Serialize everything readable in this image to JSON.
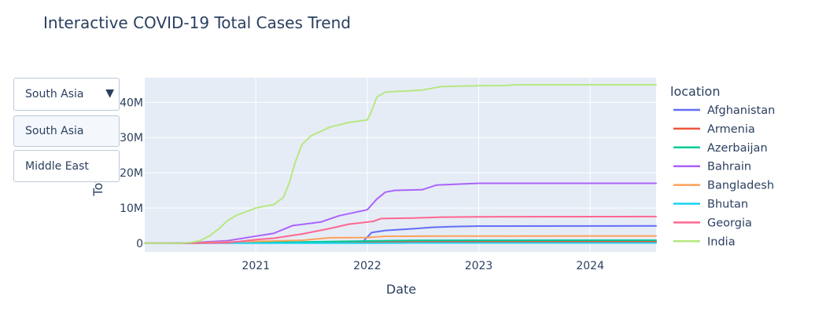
{
  "chart_data": {
    "type": "line",
    "title": "Interactive COVID-19 Total Cases Trend",
    "xlabel": "Date",
    "ylabel": "Tot",
    "legend_title": "location",
    "xlim": [
      "2020-01-03",
      "2024-08-04"
    ],
    "ylim": [
      -2500000,
      47000000
    ],
    "x_ticks": [
      "2021-01-01",
      "2022-01-01",
      "2023-01-01",
      "2024-01-01"
    ],
    "x_tick_labels": [
      "2021",
      "2022",
      "2023",
      "2024"
    ],
    "y_ticks": [
      0,
      10000000,
      20000000,
      30000000,
      40000000
    ],
    "y_tick_labels": [
      "0",
      "10M",
      "20M",
      "30M",
      "40M"
    ],
    "grid": true,
    "series": [
      {
        "name": "Afghanistan",
        "color": "#636efa",
        "points": [
          [
            "2020-01-03",
            0
          ],
          [
            "2020-06-01",
            30000
          ],
          [
            "2021-01-01",
            55000
          ],
          [
            "2021-06-01",
            90000
          ],
          [
            "2021-12-15",
            160000
          ],
          [
            "2022-01-15",
            3000000
          ],
          [
            "2022-03-01",
            3600000
          ],
          [
            "2022-06-01",
            4100000
          ],
          [
            "2022-08-01",
            4500000
          ],
          [
            "2022-10-01",
            4700000
          ],
          [
            "2023-01-01",
            4850000
          ],
          [
            "2024-08-04",
            4900000
          ]
        ]
      },
      {
        "name": "Armenia",
        "color": "#EF553B",
        "points": [
          [
            "2020-01-03",
            0
          ],
          [
            "2020-06-01",
            20000
          ],
          [
            "2021-01-01",
            160000
          ],
          [
            "2021-06-01",
            225000
          ],
          [
            "2022-01-01",
            345000
          ],
          [
            "2022-06-01",
            425000
          ],
          [
            "2023-01-01",
            447000
          ],
          [
            "2024-08-04",
            452000
          ]
        ]
      },
      {
        "name": "Azerbaijan",
        "color": "#00cc96",
        "points": [
          [
            "2020-01-03",
            0
          ],
          [
            "2020-06-01",
            7000
          ],
          [
            "2021-01-01",
            220000
          ],
          [
            "2021-06-01",
            335000
          ],
          [
            "2022-01-01",
            620000
          ],
          [
            "2022-06-01",
            792000
          ],
          [
            "2023-01-01",
            826000
          ],
          [
            "2024-08-04",
            835000
          ]
        ]
      },
      {
        "name": "Bahrain",
        "color": "#ab63fa",
        "points": [
          [
            "2020-01-03",
            0
          ],
          [
            "2020-06-01",
            100000
          ],
          [
            "2020-10-01",
            700000
          ],
          [
            "2021-01-01",
            2000000
          ],
          [
            "2021-03-01",
            2800000
          ],
          [
            "2021-05-01",
            5000000
          ],
          [
            "2021-08-01",
            6000000
          ],
          [
            "2021-10-01",
            7800000
          ],
          [
            "2022-01-01",
            9500000
          ],
          [
            "2022-02-01",
            12500000
          ],
          [
            "2022-03-01",
            14500000
          ],
          [
            "2022-04-01",
            15000000
          ],
          [
            "2022-07-01",
            15200000
          ],
          [
            "2022-08-15",
            16500000
          ],
          [
            "2023-01-01",
            17000000
          ],
          [
            "2024-08-04",
            17000000
          ]
        ]
      },
      {
        "name": "Bangladesh",
        "color": "#FFA15A",
        "points": [
          [
            "2020-01-03",
            0
          ],
          [
            "2020-06-01",
            50000
          ],
          [
            "2021-01-01",
            515000
          ],
          [
            "2021-06-01",
            830000
          ],
          [
            "2021-09-01",
            1540000
          ],
          [
            "2022-01-01",
            1600000
          ],
          [
            "2022-03-01",
            1950000
          ],
          [
            "2022-08-01",
            2010000
          ],
          [
            "2023-01-01",
            2037000
          ],
          [
            "2024-08-04",
            2050000
          ]
        ]
      },
      {
        "name": "Bhutan",
        "color": "#19d3f3",
        "points": [
          [
            "2020-01-03",
            0
          ],
          [
            "2021-01-01",
            800
          ],
          [
            "2022-01-01",
            2800
          ],
          [
            "2022-06-01",
            60000
          ],
          [
            "2024-08-04",
            62600
          ]
        ]
      },
      {
        "name": "Georgia",
        "color": "#FF6692",
        "points": [
          [
            "2020-01-03",
            0
          ],
          [
            "2020-06-01",
            1000
          ],
          [
            "2020-10-01",
            100000
          ],
          [
            "2021-01-01",
            1000000
          ],
          [
            "2021-03-01",
            1400000
          ],
          [
            "2021-06-01",
            2600000
          ],
          [
            "2021-09-01",
            4200000
          ],
          [
            "2021-11-01",
            5400000
          ],
          [
            "2022-01-01",
            6000000
          ],
          [
            "2022-01-20",
            6200000
          ],
          [
            "2022-02-15",
            7000000
          ],
          [
            "2022-06-01",
            7150000
          ],
          [
            "2022-09-01",
            7400000
          ],
          [
            "2023-01-01",
            7500000
          ],
          [
            "2024-08-04",
            7550000
          ]
        ]
      },
      {
        "name": "India",
        "color": "#B6E880",
        "points": [
          [
            "2020-01-03",
            0
          ],
          [
            "2020-05-01",
            40000
          ],
          [
            "2020-06-01",
            200000
          ],
          [
            "2020-07-01",
            700000
          ],
          [
            "2020-08-01",
            2000000
          ],
          [
            "2020-09-01",
            4000000
          ],
          [
            "2020-10-01",
            6500000
          ],
          [
            "2020-11-01",
            8000000
          ],
          [
            "2021-01-01",
            10000000
          ],
          [
            "2021-03-01",
            11000000
          ],
          [
            "2021-04-01",
            13000000
          ],
          [
            "2021-04-20",
            17000000
          ],
          [
            "2021-05-10",
            23000000
          ],
          [
            "2021-06-01",
            28000000
          ],
          [
            "2021-07-01",
            30500000
          ],
          [
            "2021-09-01",
            33000000
          ],
          [
            "2021-11-01",
            34300000
          ],
          [
            "2022-01-01",
            35000000
          ],
          [
            "2022-01-15",
            37500000
          ],
          [
            "2022-02-01",
            41500000
          ],
          [
            "2022-03-01",
            42900000
          ],
          [
            "2022-07-01",
            43500000
          ],
          [
            "2022-09-01",
            44500000
          ],
          [
            "2023-01-01",
            44700000
          ],
          [
            "2023-04-01",
            44800000
          ],
          [
            "2023-05-01",
            45000000
          ],
          [
            "2024-08-04",
            45000000
          ]
        ]
      }
    ]
  },
  "dropdown": {
    "selected": "South Asia",
    "arrow": "▼",
    "options": [
      "South Asia",
      "Middle East"
    ]
  }
}
